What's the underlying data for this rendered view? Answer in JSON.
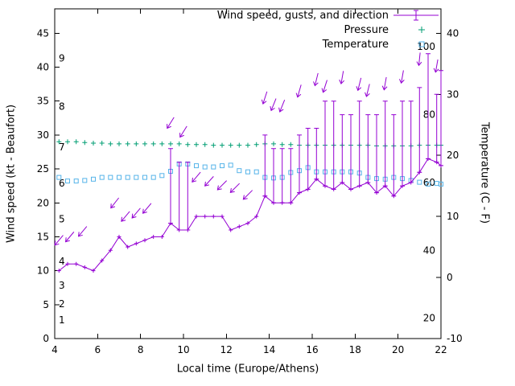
{
  "chart_data": {
    "type": "line",
    "legend": [
      {
        "label": "Wind speed, gusts, and direction",
        "color": "#9400d3",
        "marker": "errorbar-line"
      },
      {
        "label": "Pressure",
        "color": "#009e73",
        "marker": "plus"
      },
      {
        "label": "Temperature",
        "color": "#56b4e9",
        "marker": "open-square"
      }
    ],
    "xlabel": "Local time (Europe/Athens)",
    "ylabel_left": "Wind speed (kt - Beaufort)",
    "ylabel_right": "Temperature (C - F)",
    "xlim": [
      4,
      22
    ],
    "x_ticks": [
      4,
      6,
      8,
      10,
      12,
      14,
      16,
      18,
      20,
      22
    ],
    "y_left_lim": [
      0,
      48.6
    ],
    "y_left_ticks": [
      0,
      5,
      10,
      15,
      20,
      25,
      30,
      35,
      40,
      45
    ],
    "y_right_lim": [
      -10,
      44
    ],
    "y_right_ticks": [
      -10,
      0,
      10,
      20,
      30,
      40
    ],
    "beaufort_scale_labels": [
      {
        "label": "1",
        "kt": 2.7
      },
      {
        "label": "2",
        "kt": 5.1
      },
      {
        "label": "3",
        "kt": 7.8
      },
      {
        "label": "4",
        "kt": 11.4
      },
      {
        "label": "5",
        "kt": 17.6
      },
      {
        "label": "6",
        "kt": 22.9
      },
      {
        "label": "7",
        "kt": 28.2
      },
      {
        "label": "8",
        "kt": 34.2
      },
      {
        "label": "9",
        "kt": 41.3
      }
    ],
    "fahrenheit_scale_labels": [
      {
        "label": "20",
        "f": 20
      },
      {
        "label": "40",
        "f": 40
      },
      {
        "label": "60",
        "f": 60
      },
      {
        "label": "80",
        "f": 80
      },
      {
        "label": "100",
        "f": 100
      }
    ],
    "times": [
      4.2,
      4.6,
      5.0,
      5.4,
      5.8,
      6.2,
      6.6,
      7.0,
      7.4,
      7.8,
      8.2,
      8.6,
      9.0,
      9.4,
      9.8,
      10.2,
      10.6,
      11.0,
      11.4,
      11.8,
      12.2,
      12.6,
      13.0,
      13.4,
      13.8,
      14.2,
      14.6,
      15.0,
      15.4,
      15.8,
      16.2,
      16.6,
      17.0,
      17.4,
      17.8,
      18.2,
      18.6,
      19.0,
      19.4,
      19.8,
      20.2,
      20.6,
      21.0,
      21.4,
      21.8,
      22.0
    ],
    "series": {
      "wind_speed_kt": [
        10,
        11,
        11,
        10.5,
        10,
        11.5,
        13,
        15,
        13.5,
        14,
        14.5,
        15,
        15,
        17,
        16,
        16,
        18,
        18,
        18,
        18,
        16,
        16.5,
        17,
        18,
        21,
        20,
        20,
        20,
        21.5,
        22,
        23.5,
        22.5,
        22,
        23,
        22,
        22.5,
        23,
        21.5,
        22.5,
        21,
        22.5,
        23,
        24.5,
        26.5,
        26,
        25.5
      ],
      "wind_gust_kt": [
        null,
        null,
        null,
        null,
        null,
        null,
        null,
        null,
        null,
        null,
        null,
        null,
        null,
        28,
        26,
        26,
        null,
        null,
        null,
        null,
        null,
        null,
        null,
        null,
        30,
        28,
        28,
        28,
        30,
        31,
        31,
        35,
        35,
        33,
        33,
        35,
        33,
        33,
        35,
        33,
        35,
        35,
        37,
        42,
        36,
        39.5
      ],
      "pressure_plot_level_kt_axis": [
        29.0,
        29.0,
        29.0,
        28.9,
        28.8,
        28.8,
        28.7,
        28.7,
        28.7,
        28.7,
        28.7,
        28.7,
        28.7,
        28.7,
        28.7,
        28.6,
        28.6,
        28.6,
        28.5,
        28.5,
        28.5,
        28.5,
        28.5,
        28.6,
        28.7,
        28.7,
        28.6,
        28.6,
        28.5,
        28.5,
        28.5,
        28.5,
        28.5,
        28.5,
        28.5,
        28.5,
        28.5,
        28.4,
        28.4,
        28.4,
        28.4,
        28.4,
        28.5,
        28.5,
        28.5,
        28.5
      ],
      "temperature_c": [
        16.4,
        15.8,
        15.8,
        15.9,
        16.1,
        16.4,
        16.4,
        16.4,
        16.4,
        16.4,
        16.4,
        16.4,
        16.7,
        17.4,
        18.6,
        18.6,
        18.3,
        18.1,
        18.1,
        18.3,
        18.4,
        17.5,
        17.3,
        17.3,
        16.4,
        16.3,
        16.4,
        17.2,
        17.5,
        18.0,
        17.3,
        17.3,
        17.3,
        17.3,
        17.3,
        17.1,
        16.4,
        16.2,
        16.1,
        16.4,
        16.2,
        15.9,
        15.6,
        15.3,
        15.4,
        15.3
      ]
    },
    "wind_direction_arrows": [
      {
        "t": 4.2,
        "kt": 14.5,
        "rot": 40
      },
      {
        "t": 4.7,
        "kt": 15,
        "rot": 40
      },
      {
        "t": 5.3,
        "kt": 15.8,
        "rot": 40
      },
      {
        "t": 6.8,
        "kt": 20,
        "rot": 38
      },
      {
        "t": 7.3,
        "kt": 18,
        "rot": 40
      },
      {
        "t": 7.8,
        "kt": 18.5,
        "rot": 40
      },
      {
        "t": 8.3,
        "kt": 19.2,
        "rot": 40
      },
      {
        "t": 9.4,
        "kt": 31.8,
        "rot": 32
      },
      {
        "t": 10.0,
        "kt": 30.5,
        "rot": 32
      },
      {
        "t": 10.6,
        "kt": 23.8,
        "rot": 40
      },
      {
        "t": 11.2,
        "kt": 23.2,
        "rot": 42
      },
      {
        "t": 11.8,
        "kt": 22.6,
        "rot": 45
      },
      {
        "t": 12.4,
        "kt": 22.2,
        "rot": 45
      },
      {
        "t": 13.0,
        "kt": 21.2,
        "rot": 45
      },
      {
        "t": 13.8,
        "kt": 35.5,
        "rot": 18
      },
      {
        "t": 14.2,
        "kt": 34.5,
        "rot": 22
      },
      {
        "t": 14.6,
        "kt": 34.3,
        "rot": 22
      },
      {
        "t": 15.4,
        "kt": 36.5,
        "rot": 16
      },
      {
        "t": 16.2,
        "kt": 38.2,
        "rot": 14
      },
      {
        "t": 16.6,
        "kt": 37.2,
        "rot": 18
      },
      {
        "t": 17.4,
        "kt": 38.5,
        "rot": 10
      },
      {
        "t": 18.2,
        "kt": 37.5,
        "rot": 14
      },
      {
        "t": 18.6,
        "kt": 36.6,
        "rot": 14
      },
      {
        "t": 19.4,
        "kt": 37.6,
        "rot": 10
      },
      {
        "t": 20.2,
        "kt": 38.6,
        "rot": 10
      },
      {
        "t": 21.0,
        "kt": 41.2,
        "rot": 6
      },
      {
        "t": 21.8,
        "kt": 40.2,
        "rot": 10
      }
    ]
  }
}
